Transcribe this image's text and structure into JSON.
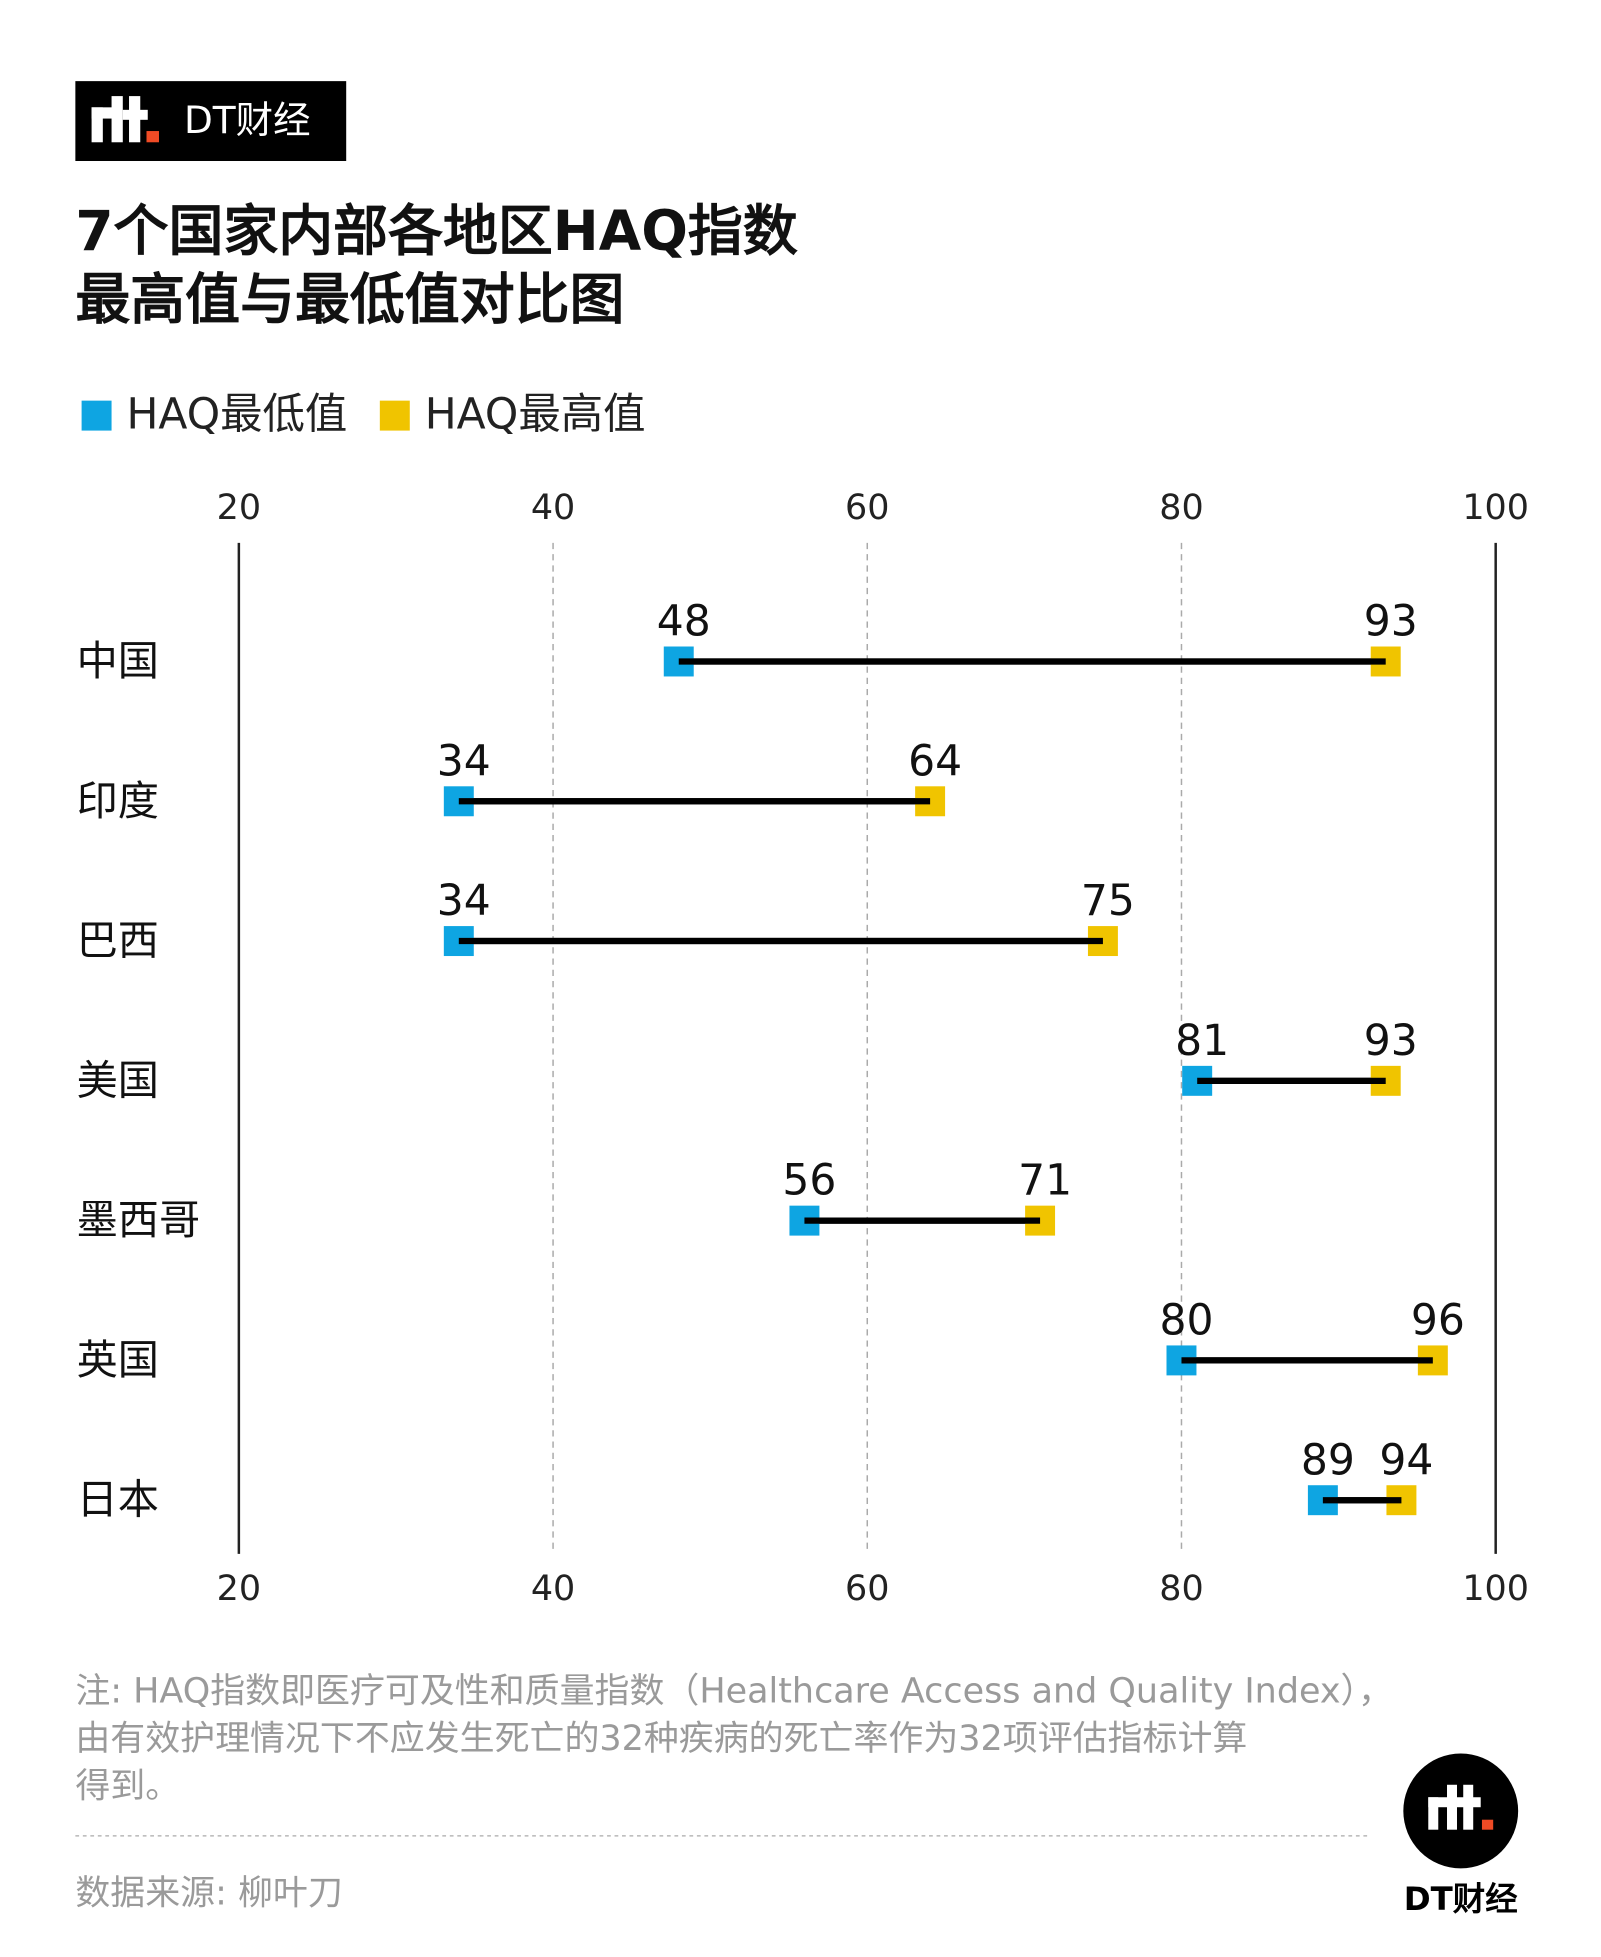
{
  "chart_data": {
    "type": "dumbbell",
    "brand": "DT财经",
    "title": [
      "7个国家内部各地区HAQ指数",
      "最高值与最低值对比图"
    ],
    "categories": [
      "中国",
      "印度",
      "巴西",
      "美国",
      "墨西哥",
      "英国",
      "日本"
    ],
    "series": [
      {
        "name": "HAQ最低值",
        "color": "#0ea5e2",
        "values": [
          48,
          34,
          34,
          81,
          56,
          80,
          89
        ]
      },
      {
        "name": "HAQ最高值",
        "color": "#f0c400",
        "values": [
          93,
          64,
          75,
          93,
          71,
          96,
          94
        ]
      }
    ],
    "xlim": [
      20,
      100
    ],
    "xticks": [
      20,
      40,
      60,
      80,
      100
    ],
    "grid": true,
    "note": [
      "注: HAQ指数即医疗可及性和质量指数（Healthcare Access and Quality Index），",
      "由有效护理情况下不应发生死亡的32种疾病的死亡率作为32项评估指标计算",
      "得到。"
    ],
    "source": "数据来源: 柳叶刀"
  }
}
